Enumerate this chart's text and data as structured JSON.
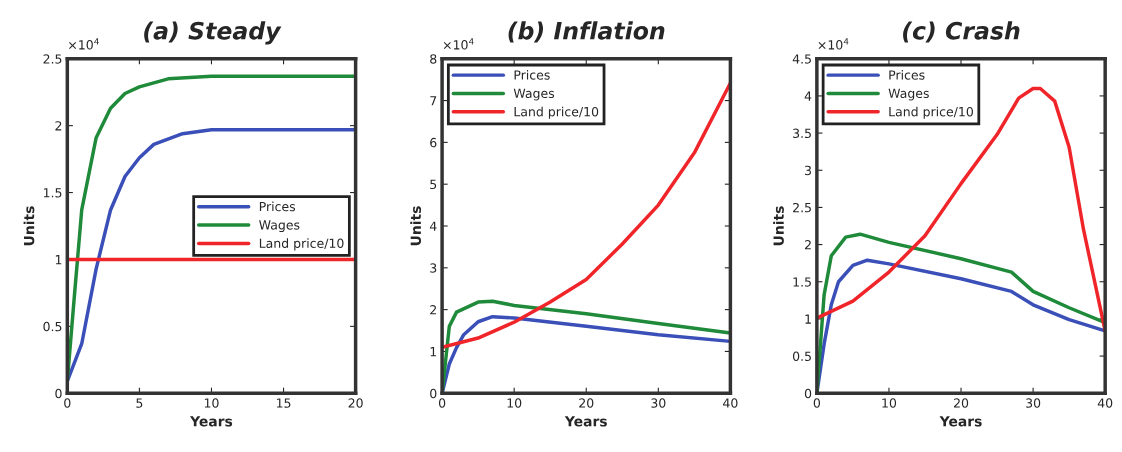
{
  "chart_data": [
    {
      "type": "line",
      "title": "(a) Steady",
      "xlabel": "Years",
      "ylabel": "Units",
      "annotations": [
        "×10$^{4}$"
      ],
      "xlim": [
        0,
        20
      ],
      "xticks": [
        0,
        5,
        10,
        15,
        20
      ],
      "ylim": [
        0,
        2.5
      ],
      "yticks": [
        0,
        0.5,
        1,
        1.5,
        2,
        2.5
      ],
      "legend": "right",
      "grid": false,
      "series": [
        {
          "name": "Prices",
          "color": "#3b4fb8",
          "x": [
            0,
            1,
            2,
            3,
            4,
            5,
            6,
            8,
            10,
            20
          ],
          "values": [
            0.09,
            0.37,
            0.93,
            1.37,
            1.62,
            1.76,
            1.86,
            1.94,
            1.97,
            1.97
          ]
        },
        {
          "name": "Wages",
          "color": "#1f8a3a",
          "x": [
            0,
            0.5,
            1,
            2,
            3,
            4,
            5,
            7,
            10,
            20
          ],
          "values": [
            0.09,
            0.74,
            1.37,
            1.91,
            2.13,
            2.24,
            2.29,
            2.35,
            2.37,
            2.37
          ]
        },
        {
          "name": "Land price/10",
          "color": "#f0252a",
          "x": [
            0,
            20
          ],
          "values": [
            1.0,
            1.0
          ]
        }
      ]
    },
    {
      "type": "line",
      "title": "(b) Inflation",
      "xlabel": "Years",
      "ylabel": "Units",
      "annotations": [
        "×10$^{4}$"
      ],
      "xlim": [
        0,
        40
      ],
      "xticks": [
        0,
        10,
        20,
        30,
        40
      ],
      "ylim": [
        0,
        8
      ],
      "yticks": [
        0,
        1,
        2,
        3,
        4,
        5,
        6,
        7,
        8
      ],
      "legend": "top left",
      "grid": false,
      "series": [
        {
          "name": "Prices",
          "color": "#3b4fb8",
          "x": [
            0,
            1,
            2,
            3,
            5,
            7,
            10,
            20,
            30,
            40
          ],
          "values": [
            0,
            0.7,
            1.09,
            1.4,
            1.71,
            1.83,
            1.8,
            1.6,
            1.4,
            1.24
          ]
        },
        {
          "name": "Wages",
          "color": "#1f8a3a",
          "x": [
            0,
            1,
            2,
            5,
            7,
            10,
            20,
            30,
            40
          ],
          "values": [
            0,
            1.6,
            1.94,
            2.18,
            2.2,
            2.1,
            1.9,
            1.67,
            1.44
          ]
        },
        {
          "name": "Land price/10",
          "color": "#f0252a",
          "x": [
            0,
            5,
            10,
            15,
            20,
            25,
            30,
            35,
            40
          ],
          "values": [
            1.1,
            1.32,
            1.7,
            2.18,
            2.72,
            3.57,
            4.5,
            5.75,
            7.42
          ]
        }
      ]
    },
    {
      "type": "line",
      "title": "(c) Crash",
      "xlabel": "Years",
      "ylabel": "Units",
      "annotations": [
        "×10$^{4}$"
      ],
      "xlim": [
        0,
        40
      ],
      "xticks": [
        0,
        10,
        20,
        30,
        40
      ],
      "ylim": [
        0,
        4.5
      ],
      "yticks": [
        0,
        0.5,
        1,
        1.5,
        2,
        2.5,
        3,
        3.5,
        4,
        4.5
      ],
      "legend": "top left",
      "grid": false,
      "series": [
        {
          "name": "Prices",
          "color": "#3b4fb8",
          "x": [
            0,
            1,
            2,
            3,
            5,
            7,
            10,
            20,
            27,
            30,
            35,
            40
          ],
          "values": [
            0,
            0.66,
            1.19,
            1.5,
            1.72,
            1.79,
            1.74,
            1.54,
            1.37,
            1.19,
            0.99,
            0.84
          ]
        },
        {
          "name": "Wages",
          "color": "#1f8a3a",
          "x": [
            0,
            1,
            2,
            4,
            6,
            10,
            20,
            27,
            30,
            35,
            40
          ],
          "values": [
            0,
            1.32,
            1.85,
            2.1,
            2.14,
            2.03,
            1.81,
            1.63,
            1.37,
            1.15,
            0.95
          ]
        },
        {
          "name": "Land price/10",
          "color": "#f0252a",
          "x": [
            0,
            5,
            10,
            15,
            20,
            25,
            28,
            30,
            31,
            33,
            35,
            37,
            40
          ],
          "values": [
            1.01,
            1.24,
            1.63,
            2.12,
            2.82,
            3.48,
            3.97,
            4.1,
            4.1,
            3.93,
            3.31,
            2.2,
            0.84
          ]
        }
      ]
    }
  ]
}
